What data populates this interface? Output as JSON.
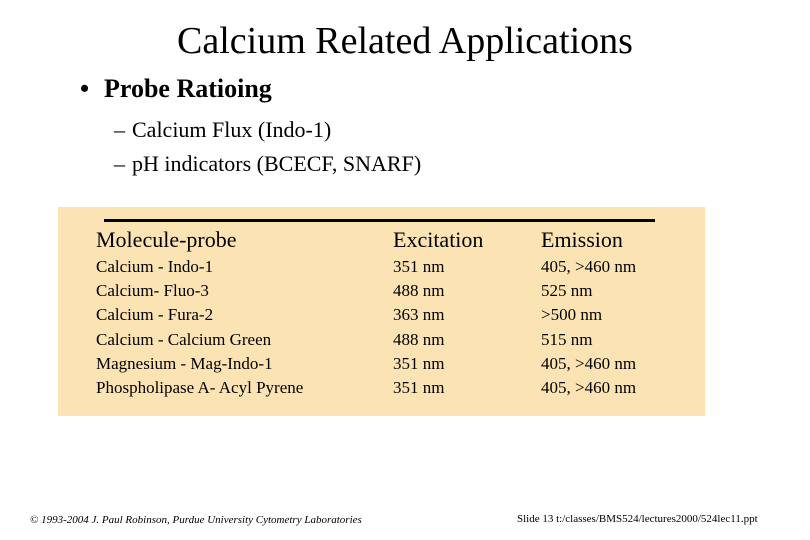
{
  "slide": {
    "title": "Calcium Related Applications",
    "bullet": "Probe Ratioing",
    "bullet_marker": "•",
    "sub_marker": "–",
    "subitems": [
      "Calcium Flux (Indo-1)",
      "pH indicators (BCECF, SNARF)"
    ]
  },
  "table": {
    "headers": [
      "Molecule-probe",
      "Excitation",
      "Emission"
    ],
    "molecules": [
      "Calcium - Indo-1",
      "Calcium- Fluo-3",
      "Calcium - Fura-2",
      "Calcium - Calcium Green",
      "Magnesium - Mag-Indo-1",
      "Phospholipase A- Acyl Pyrene"
    ],
    "excitation": [
      "351 nm",
      "488 nm",
      "363 nm",
      "488 nm",
      "351 nm",
      "351 nm"
    ],
    "emission": [
      "405, >460 nm",
      "525 nm",
      ">500 nm",
      "515 nm",
      "405, >460 nm",
      "405, >460 nm"
    ],
    "background_color": "#fbe3b3"
  },
  "footer": {
    "copyright": "© 1993-2004 J. Paul Robinson, Purdue University Cytometry Laboratories",
    "slide_info": "Slide 13  t:/classes/BMS524/lectures2000/524lec11.ppt"
  }
}
